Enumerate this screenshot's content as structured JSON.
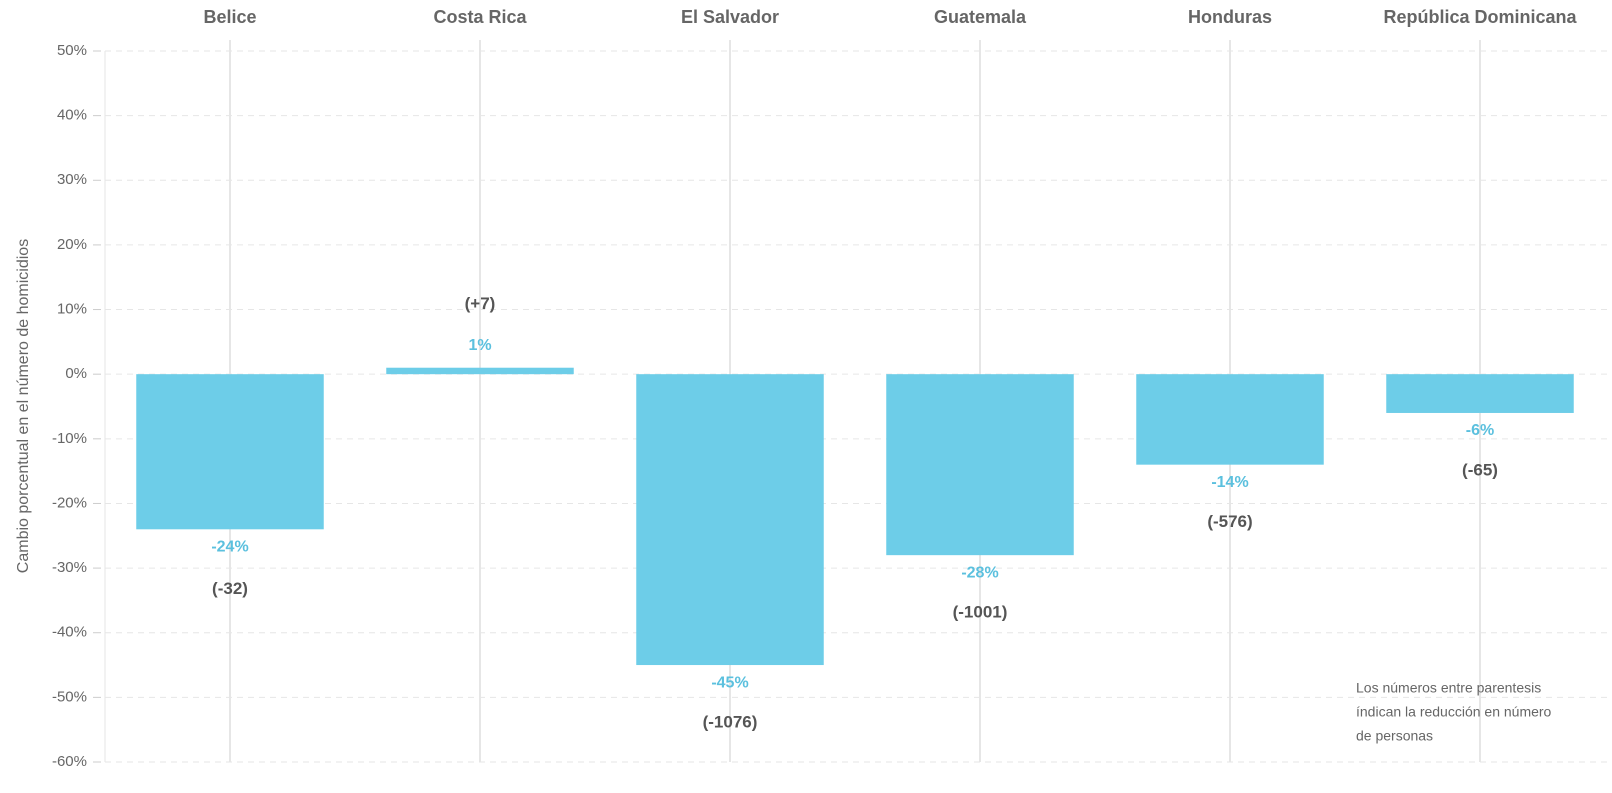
{
  "chart_data": {
    "type": "bar",
    "y_label": "Cambio porcentual en el número de homicidios",
    "categories": [
      "Belice",
      "Costa Rica",
      "El Salvador",
      "Guatemala",
      "Honduras",
      "República Dominicana"
    ],
    "values": [
      -24,
      1,
      -45,
      -28,
      -14,
      -6
    ],
    "value_labels": [
      "-24%",
      "1%",
      "-45%",
      "-28%",
      "-14%",
      "-6%"
    ],
    "changes": [
      -32,
      7,
      -1076,
      -1001,
      -576,
      -65
    ],
    "change_labels": [
      "(-32)",
      "(+7)",
      "(-1076)",
      "(-1001)",
      "(-576)",
      "(-65)"
    ],
    "color": "#6dcde8",
    "ylim": [
      -60,
      50
    ],
    "yticks": [
      {
        "value": -60,
        "label": "-60%"
      },
      {
        "value": -50,
        "label": "-50%"
      },
      {
        "value": -40,
        "label": "-40%"
      },
      {
        "value": -30,
        "label": "-30%"
      },
      {
        "value": -20,
        "label": "-20%"
      },
      {
        "value": -10,
        "label": "-10%"
      },
      {
        "value": 0,
        "label": "0%"
      },
      {
        "value": 10,
        "label": "10%"
      },
      {
        "value": 20,
        "label": "20%"
      },
      {
        "value": 30,
        "label": "30%"
      },
      {
        "value": 40,
        "label": "40%"
      },
      {
        "value": 50,
        "label": "50%"
      }
    ],
    "grid": true,
    "note": [
      "Los números entre parentesis",
      "índican la reducción en número",
      "de personas"
    ]
  }
}
